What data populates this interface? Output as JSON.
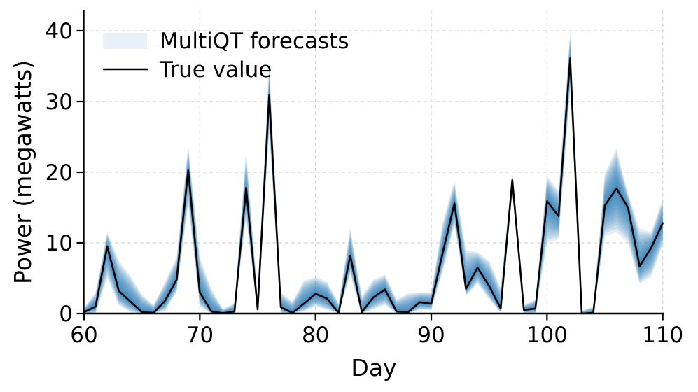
{
  "chart_data": {
    "type": "line",
    "title": "",
    "xlabel": "Day",
    "ylabel": "Power (megawatts)",
    "xlim": [
      60,
      110
    ],
    "ylim": [
      0,
      42.9
    ],
    "x_ticks": [
      60,
      70,
      80,
      90,
      100,
      110
    ],
    "y_ticks": [
      0,
      10,
      20,
      30,
      40
    ],
    "grid": true,
    "legend_position": "upper-left",
    "days": [
      60,
      61,
      62,
      63,
      64,
      65,
      66,
      67,
      68,
      69,
      70,
      71,
      72,
      73,
      74,
      75,
      76,
      77,
      78,
      79,
      80,
      81,
      82,
      83,
      84,
      85,
      86,
      87,
      88,
      89,
      90,
      91,
      92,
      93,
      94,
      95,
      96,
      97,
      98,
      99,
      100,
      101,
      102,
      103,
      104,
      105,
      106,
      107,
      108,
      109,
      110
    ],
    "series": [
      {
        "name": "MultiQT forecasts",
        "type": "quantile-band",
        "color": "#1f77b4",
        "upper": [
          0.8,
          3.0,
          11.5,
          7.5,
          5.4,
          2.7,
          1.2,
          4.5,
          8.0,
          23.8,
          8.0,
          3.5,
          0.6,
          1.5,
          23.1,
          2.5,
          35.4,
          3.0,
          1.7,
          4.7,
          5.2,
          4.5,
          1.5,
          12.1,
          2.5,
          4.8,
          5.5,
          2.0,
          2.9,
          3.0,
          3.0,
          13.0,
          18.8,
          9.0,
          8.7,
          7.5,
          3.7,
          20.0,
          1.2,
          2.0,
          19.5,
          17.4,
          39.8,
          0.4,
          1.0,
          19.9,
          23.4,
          17.0,
          12.0,
          11.5,
          16.3
        ],
        "lower": [
          0.0,
          0.0,
          5.0,
          1.2,
          0.2,
          0.0,
          0.0,
          0.4,
          3.0,
          15.5,
          1.0,
          0.0,
          0.0,
          0.0,
          13.5,
          0.0,
          25.5,
          0.0,
          0.0,
          0.3,
          1.0,
          0.5,
          0.0,
          5.5,
          0.0,
          0.6,
          1.2,
          0.0,
          0.0,
          0.5,
          0.5,
          6.0,
          12.5,
          2.5,
          4.2,
          2.0,
          0.1,
          17.0,
          0.0,
          0.0,
          10.0,
          10.5,
          31.5,
          0.0,
          0.0,
          11.0,
          11.5,
          10.0,
          4.2,
          5.2,
          9.7
        ]
      },
      {
        "name": "True value",
        "type": "line",
        "color": "#000000",
        "values": [
          0.2,
          1.0,
          9.5,
          3.2,
          1.7,
          0.2,
          0.1,
          1.8,
          4.8,
          20.3,
          3.0,
          0.3,
          0.05,
          0.3,
          17.8,
          0.6,
          30.9,
          0.9,
          0.1,
          1.4,
          2.8,
          2.1,
          0.1,
          8.2,
          0.2,
          2.3,
          3.4,
          0.3,
          0.2,
          1.6,
          1.4,
          8.7,
          15.6,
          3.5,
          6.5,
          3.9,
          0.7,
          18.9,
          0.5,
          0.7,
          15.9,
          13.8,
          36.1,
          0.0,
          0.1,
          15.3,
          17.7,
          15.0,
          6.7,
          9.3,
          12.8
        ]
      }
    ]
  },
  "legend": {
    "items": [
      {
        "label": "MultiQT forecasts",
        "swatch": "band-swatch"
      },
      {
        "label": "True value",
        "swatch": "line-swatch"
      }
    ]
  },
  "colors": {
    "band": "#1f77b4",
    "band_legend_patch": "#e8f0f8",
    "true_line": "#000000",
    "grid": "#d6d6d6",
    "axis": "#000000",
    "background": "#ffffff"
  }
}
